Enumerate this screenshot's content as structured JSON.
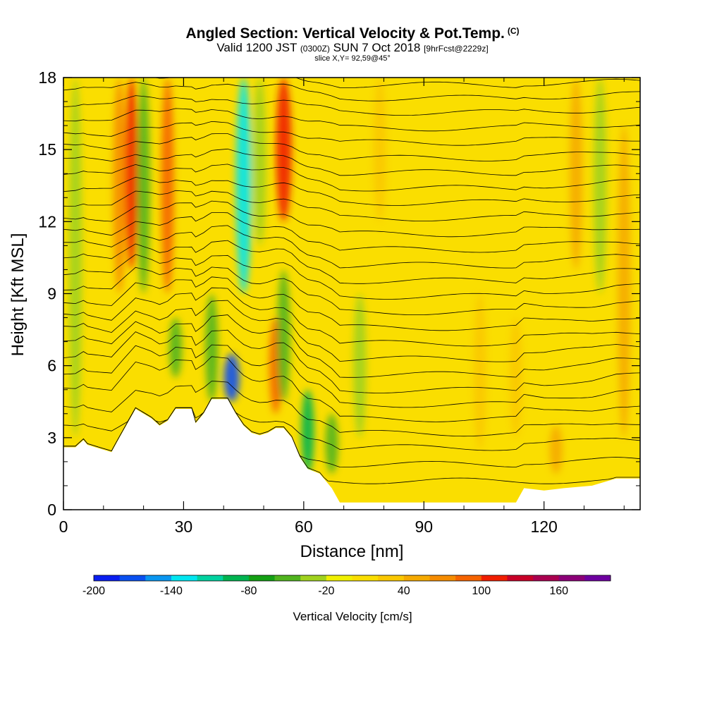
{
  "header": {
    "title": "Angled Section: Vertical Velocity & Pot.Temp.",
    "title_units": "(C)",
    "valid_prefix": "Valid 1200 JST",
    "valid_utc": "(0300Z)",
    "valid_date": "SUN 7 Oct 2018",
    "forecast": "[9hrFcst@2229z]",
    "slice": "slice X,Y= 92,59@45°"
  },
  "chart_data": {
    "type": "heatmap",
    "xlabel": "Distance [nm]",
    "ylabel": "Height [Kft MSL]",
    "xlim": [
      0,
      144
    ],
    "ylim": [
      0,
      18
    ],
    "x_ticks": [
      "0",
      "30",
      "60",
      "90",
      "120"
    ],
    "y_ticks": [
      "0",
      "3",
      "6",
      "9",
      "12",
      "15",
      "18"
    ],
    "colorbar": {
      "title": "Vertical Velocity [cm/s]",
      "labels": [
        "-200",
        "-140",
        "-80",
        "-20",
        "40",
        "100",
        "160"
      ],
      "colors": [
        "#0a1ef0",
        "#0a50f0",
        "#0a96f0",
        "#00e6f0",
        "#00d2a0",
        "#00b450",
        "#14a014",
        "#50b41e",
        "#a0d21e",
        "#f0f000",
        "#fade00",
        "#fac800",
        "#f5aa00",
        "#f58c00",
        "#f56400",
        "#f01e00",
        "#c80028",
        "#aa0050",
        "#8c0078",
        "#6e00a0"
      ]
    },
    "background_field": "#fade00",
    "velocity_features": [
      {
        "x": 3,
        "y0": 3,
        "y1": 18,
        "v": -30
      },
      {
        "x": 14,
        "y0": 9,
        "y1": 18,
        "v": 70
      },
      {
        "x": 17,
        "y0": 10,
        "y1": 18,
        "v": 100
      },
      {
        "x": 20,
        "y0": 9,
        "y1": 18,
        "v": -60
      },
      {
        "x": 26,
        "y0": 9,
        "y1": 18,
        "v": 80
      },
      {
        "x": 28,
        "y0": 5.5,
        "y1": 8,
        "v": -60
      },
      {
        "x": 37,
        "y0": 4.5,
        "y1": 9,
        "v": -60
      },
      {
        "x": 42,
        "y0": 4.5,
        "y1": 6.5,
        "v": -170
      },
      {
        "x": 45,
        "y0": 9,
        "y1": 18,
        "v": -140
      },
      {
        "x": 49,
        "y0": 11,
        "y1": 18,
        "v": -40
      },
      {
        "x": 53,
        "y0": 4,
        "y1": 8,
        "v": 90
      },
      {
        "x": 55,
        "y0": 12,
        "y1": 18,
        "v": 110
      },
      {
        "x": 55,
        "y0": 4.5,
        "y1": 10,
        "v": -60
      },
      {
        "x": 61,
        "y0": 1.5,
        "y1": 5,
        "v": -90
      },
      {
        "x": 67,
        "y0": 1.5,
        "y1": 4,
        "v": -50
      },
      {
        "x": 74,
        "y0": 3,
        "y1": 9,
        "v": -35
      },
      {
        "x": 79,
        "y0": 12,
        "y1": 18,
        "v": 30
      },
      {
        "x": 104,
        "y0": 2.5,
        "y1": 9,
        "v": 30
      },
      {
        "x": 113,
        "y0": 3,
        "y1": 8,
        "v": 25
      },
      {
        "x": 123,
        "y0": 1.5,
        "y1": 3.5,
        "v": 50
      },
      {
        "x": 128,
        "y0": 10,
        "y1": 18,
        "v": 45
      },
      {
        "x": 134,
        "y0": 9,
        "y1": 18,
        "v": -30
      },
      {
        "x": 140,
        "y0": 3,
        "y1": 16,
        "v": 40
      }
    ],
    "terrain_kft": [
      [
        0,
        2.6
      ],
      [
        3,
        2.6
      ],
      [
        5,
        2.9
      ],
      [
        6,
        2.7
      ],
      [
        8,
        2.6
      ],
      [
        10,
        2.5
      ],
      [
        12,
        2.4
      ],
      [
        14,
        3.0
      ],
      [
        16,
        3.6
      ],
      [
        18,
        4.2
      ],
      [
        20,
        4.0
      ],
      [
        22,
        3.8
      ],
      [
        24,
        3.5
      ],
      [
        26,
        3.7
      ],
      [
        28,
        4.2
      ],
      [
        32,
        4.2
      ],
      [
        33,
        3.6
      ],
      [
        35,
        4.0
      ],
      [
        37,
        4.6
      ],
      [
        41,
        4.6
      ],
      [
        43,
        4.0
      ],
      [
        45,
        3.5
      ],
      [
        47,
        3.2
      ],
      [
        49,
        3.1
      ],
      [
        51,
        3.2
      ],
      [
        53,
        3.4
      ],
      [
        55,
        3.4
      ],
      [
        57,
        3.0
      ],
      [
        59,
        2.2
      ],
      [
        61,
        1.7
      ],
      [
        64,
        1.5
      ],
      [
        67,
        0.9
      ],
      [
        69,
        0.3
      ],
      [
        113,
        0.3
      ],
      [
        115,
        0.9
      ],
      [
        120,
        0.8
      ],
      [
        125,
        0.9
      ],
      [
        132,
        1.0
      ],
      [
        138,
        1.3
      ],
      [
        144,
        1.3
      ]
    ],
    "isentropes": [
      {
        "h": 1.2,
        "w": 0.0
      },
      {
        "h": 2.2,
        "w": 0.3
      },
      {
        "h": 3.2,
        "w": 0.6
      },
      {
        "h": 4.0,
        "w": 0.8
      },
      {
        "h": 4.8,
        "w": 1.0
      },
      {
        "h": 5.4,
        "w": 1.0
      },
      {
        "h": 6.0,
        "w": 1.0
      },
      {
        "h": 6.6,
        "w": 0.95
      },
      {
        "h": 7.2,
        "w": 0.9
      },
      {
        "h": 7.8,
        "w": 0.85
      },
      {
        "h": 8.4,
        "w": 0.8
      },
      {
        "h": 9.0,
        "w": 0.75
      },
      {
        "h": 9.6,
        "w": 0.7
      },
      {
        "h": 10.2,
        "w": 0.65
      },
      {
        "h": 10.8,
        "w": 0.6
      },
      {
        "h": 11.4,
        "w": 0.55
      },
      {
        "h": 12.0,
        "w": 0.5
      },
      {
        "h": 12.6,
        "w": 0.45
      },
      {
        "h": 13.2,
        "w": 0.4
      },
      {
        "h": 13.8,
        "w": 0.4
      },
      {
        "h": 14.4,
        "w": 0.35
      },
      {
        "h": 15.0,
        "w": 0.35
      },
      {
        "h": 15.6,
        "w": 0.3
      },
      {
        "h": 16.2,
        "w": 0.3
      },
      {
        "h": 16.8,
        "w": 0.25
      },
      {
        "h": 17.4,
        "w": 0.25
      },
      {
        "h": 17.9,
        "w": 0.2
      }
    ]
  }
}
